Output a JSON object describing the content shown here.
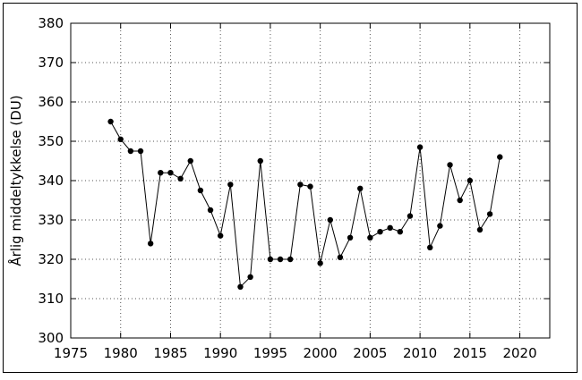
{
  "chart_data": {
    "type": "line",
    "title": "",
    "xlabel": "",
    "ylabel": "Årlig middeltykkelse (DU)",
    "xlim": [
      1975,
      2023
    ],
    "ylim": [
      300,
      380
    ],
    "xticks": [
      1975,
      1980,
      1985,
      1990,
      1995,
      2000,
      2005,
      2010,
      2015,
      2020
    ],
    "yticks": [
      300,
      310,
      320,
      330,
      340,
      350,
      360,
      370,
      380
    ],
    "grid": true,
    "legend": "none",
    "line_color": "#000000",
    "marker_color": "#000000",
    "series": [
      {
        "x": [
          1979,
          1980,
          1981,
          1982,
          1983,
          1984,
          1985,
          1986,
          1987,
          1988,
          1989,
          1990,
          1991,
          1992,
          1993,
          1994,
          1995,
          1996,
          1997,
          1998,
          1999,
          2000,
          2001,
          2002,
          2003,
          2004,
          2005,
          2006,
          2007,
          2008,
          2009,
          2010,
          2011,
          2012,
          2013,
          2014,
          2015,
          2016,
          2017,
          2018
        ],
        "values": [
          355,
          350.5,
          347.5,
          347.5,
          324,
          342,
          342,
          340.5,
          345,
          337.5,
          332.5,
          326,
          339,
          313,
          315.5,
          345,
          320,
          320,
          320,
          339,
          338.5,
          319,
          330,
          320.5,
          325.5,
          338,
          325.5,
          327,
          328,
          327,
          331,
          348.5,
          323,
          328.5,
          344,
          335,
          340,
          327.5,
          331.5,
          346
        ]
      }
    ]
  }
}
